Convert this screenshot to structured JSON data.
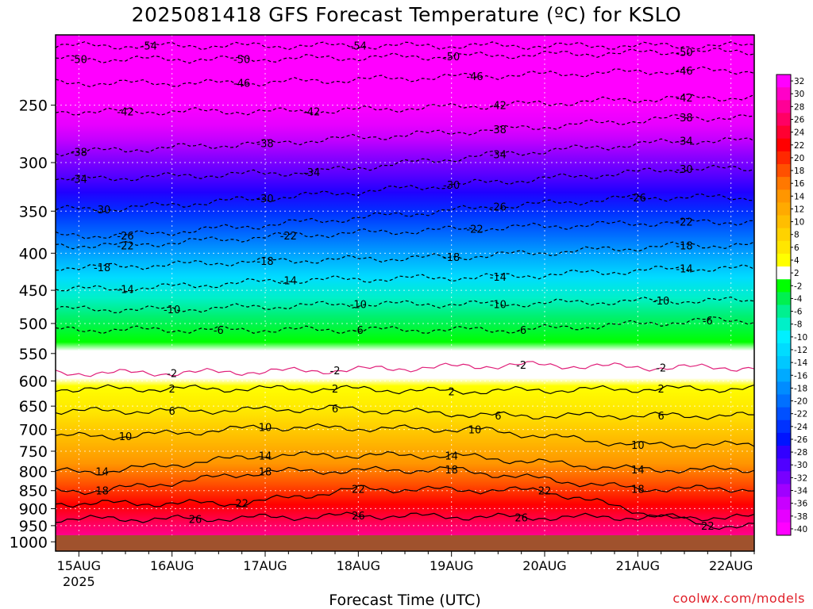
{
  "chart_data": {
    "type": "heatmap",
    "title": "2025081418 GFS Forecast Temperature (ºC) for KSLO",
    "xlabel": "Forecast Time (UTC)",
    "ylabel": "",
    "x_ticks": [
      "15AUG",
      "16AUG",
      "17AUG",
      "18AUG",
      "19AUG",
      "20AUG",
      "21AUG",
      "22AUG"
    ],
    "x_tick_sublabel": "2025",
    "x_range": [
      "2025-08-14 18Z",
      "2025-08-22 06Z"
    ],
    "y_ticks": [
      250,
      300,
      350,
      400,
      450,
      500,
      550,
      600,
      650,
      700,
      750,
      800,
      850,
      900,
      950,
      1000
    ],
    "y_range": [
      200,
      1030
    ],
    "y_scale": "log",
    "y_inverted": true,
    "grid": true,
    "colorbar": {
      "labels": [
        "32",
        "30",
        "28",
        "26",
        "24",
        "22",
        "20",
        "18",
        "16",
        "14",
        "12",
        "10",
        "8",
        "6",
        "4",
        "2",
        "-2",
        "-4",
        "-6",
        "-8",
        "-10",
        "-12",
        "-14",
        "-16",
        "-18",
        "-20",
        "-22",
        "-24",
        "-26",
        "-28",
        "-30",
        "-32",
        "-34",
        "-36",
        "-38",
        "-40"
      ],
      "colors": [
        "#ff00ff",
        "#ff00c8",
        "#ff0096",
        "#ff0064",
        "#ff0032",
        "#ff0000",
        "#ff2800",
        "#ff5000",
        "#ff7800",
        "#ff9600",
        "#ffaa00",
        "#ffbe00",
        "#ffd200",
        "#ffe600",
        "#ffff00",
        "#ffffff",
        "#00ff00",
        "#00f050",
        "#00f090",
        "#00f0c8",
        "#00f0ff",
        "#00dcff",
        "#00c8ff",
        "#00aaff",
        "#008cff",
        "#0070ff",
        "#0050ff",
        "#0032ff",
        "#0014ff",
        "#3200ff",
        "#5000ff",
        "#7800ff",
        "#a000ff",
        "#c800ff",
        "#e600ff",
        "#ff00ff"
      ]
    },
    "contour_labels": [
      {
        "value": -54,
        "x": [
          "15AUG 18Z",
          "18AUG 00Z"
        ],
        "p": [
          207,
          207
        ]
      },
      {
        "value": -50,
        "x": [
          "15AUG 00Z",
          "16AUG 18Z",
          "19AUG 00Z",
          "21AUG 12Z"
        ],
        "p": [
          216,
          216,
          214,
          211
        ]
      },
      {
        "value": -46,
        "x": [
          "16AUG 18Z",
          "19AUG 06Z",
          "21AUG 12Z"
        ],
        "p": [
          233,
          228,
          224
        ]
      },
      {
        "value": -42,
        "x": [
          "15AUG 12Z",
          "17AUG 12Z",
          "19AUG 12Z",
          "21AUG 12Z"
        ],
        "p": [
          255,
          255,
          250,
          244
        ]
      },
      {
        "value": -38,
        "x": [
          "15AUG 00Z",
          "17AUG 00Z",
          "19AUG 12Z",
          "21AUG 12Z"
        ],
        "p": [
          290,
          282,
          270,
          260
        ]
      },
      {
        "value": -34,
        "x": [
          "15AUG 00Z",
          "17AUG 12Z",
          "19AUG 12Z",
          "21AUG 12Z"
        ],
        "p": [
          316,
          309,
          292,
          280
        ]
      },
      {
        "value": -30,
        "x": [
          "15AUG 06Z",
          "17AUG 00Z",
          "19AUG 00Z",
          "21AUG 12Z"
        ],
        "p": [
          348,
          336,
          322,
          306
        ]
      },
      {
        "value": -26,
        "x": [
          "15AUG 12Z",
          "19AUG 12Z",
          "21AUG 00Z"
        ],
        "p": [
          378,
          345,
          335
        ]
      },
      {
        "value": -22,
        "x": [
          "15AUG 12Z",
          "17AUG 06Z",
          "19AUG 06Z",
          "21AUG 12Z"
        ],
        "p": [
          390,
          378,
          370,
          362
        ]
      },
      {
        "value": -18,
        "x": [
          "15AUG 06Z",
          "17AUG 00Z",
          "19AUG 00Z",
          "21AUG 12Z"
        ],
        "p": [
          418,
          410,
          405,
          390
        ]
      },
      {
        "value": -14,
        "x": [
          "15AUG 12Z",
          "17AUG 06Z",
          "19AUG 12Z",
          "21AUG 12Z"
        ],
        "p": [
          448,
          436,
          431,
          420
        ]
      },
      {
        "value": -10,
        "x": [
          "16AUG 00Z",
          "18AUG 00Z",
          "19AUG 12Z",
          "21AUG 06Z"
        ],
        "p": [
          478,
          470,
          470,
          465
        ]
      },
      {
        "value": -6,
        "x": [
          "16AUG 12Z",
          "18AUG 00Z",
          "19AUG 18Z",
          "21AUG 18Z"
        ],
        "p": [
          510,
          510,
          510,
          495
        ]
      },
      {
        "value": -2,
        "x": [
          "16AUG 00Z",
          "17AUG 18Z",
          "19AUG 18Z",
          "21AUG 06Z"
        ],
        "p": [
          585,
          580,
          570,
          575
        ]
      },
      {
        "value": 2,
        "x": [
          "16AUG 00Z",
          "17AUG 18Z",
          "19AUG 00Z",
          "21AUG 06Z"
        ],
        "p": [
          615,
          615,
          620,
          615
        ]
      },
      {
        "value": 6,
        "x": [
          "16AUG 00Z",
          "17AUG 18Z",
          "19AUG 12Z",
          "21AUG 06Z"
        ],
        "p": [
          660,
          655,
          670,
          670
        ]
      },
      {
        "value": 10,
        "x": [
          "15AUG 12Z",
          "17AUG 00Z",
          "19AUG 06Z",
          "21AUG 00Z"
        ],
        "p": [
          715,
          695,
          700,
          735
        ]
      },
      {
        "value": 14,
        "x": [
          "15AUG 06Z",
          "17AUG 00Z",
          "19AUG 00Z",
          "21AUG 00Z"
        ],
        "p": [
          800,
          760,
          760,
          795
        ]
      },
      {
        "value": 18,
        "x": [
          "15AUG 06Z",
          "17AUG 00Z",
          "19AUG 00Z",
          "21AUG 00Z"
        ],
        "p": [
          850,
          800,
          795,
          845
        ]
      },
      {
        "value": 22,
        "x": [
          "16AUG 18Z",
          "18AUG 00Z",
          "20AUG 00Z",
          "21AUG 18Z"
        ],
        "p": [
          885,
          845,
          850,
          950
        ]
      },
      {
        "value": 26,
        "x": [
          "16AUG 06Z",
          "18AUG 00Z",
          "19AUG 18Z"
        ],
        "p": [
          930,
          920,
          925
        ]
      }
    ]
  },
  "credit": "coolwx.com/models"
}
